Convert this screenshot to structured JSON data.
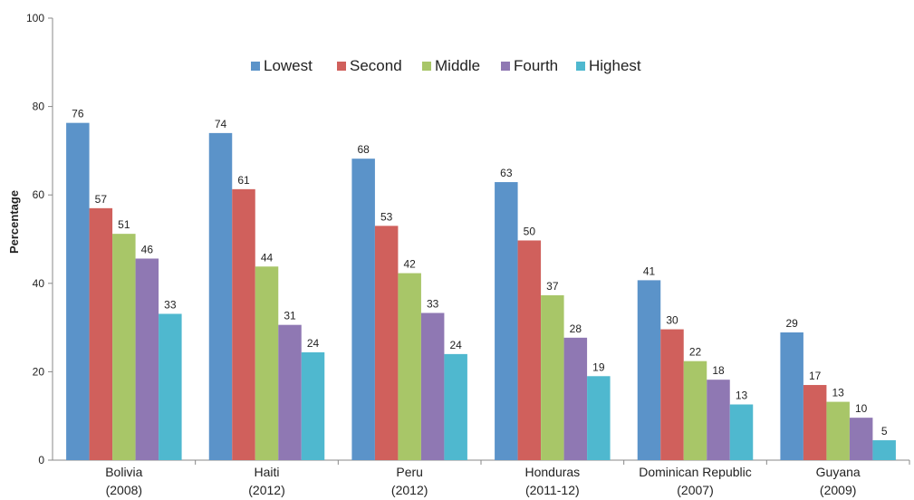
{
  "chart_data": {
    "type": "bar",
    "title": "",
    "xlabel": "",
    "ylabel": "Percentage",
    "ylim": [
      0,
      100
    ],
    "yticks": [
      0,
      20,
      40,
      60,
      80,
      100
    ],
    "grid": false,
    "legend_position": "top",
    "categories": [
      {
        "line1": "Bolivia",
        "line2": "(2008)"
      },
      {
        "line1": "Haiti",
        "line2": "(2012)"
      },
      {
        "line1": "Peru",
        "line2": "(2012)"
      },
      {
        "line1": "Honduras",
        "line2": "(2011-12)"
      },
      {
        "line1": "Dominican Republic",
        "line2": "(2007)"
      },
      {
        "line1": "Guyana",
        "line2": "(2009)"
      }
    ],
    "series": [
      {
        "name": "Lowest",
        "color": "#5b93c9",
        "values": [
          76.3,
          74.0,
          68.2,
          62.9,
          40.7,
          28.9
        ],
        "labels": [
          "76",
          "74",
          "68",
          "63",
          "41",
          "29"
        ]
      },
      {
        "name": "Second",
        "color": "#d0605c",
        "values": [
          57.0,
          61.3,
          53.0,
          49.7,
          29.6,
          17.0
        ],
        "labels": [
          "57",
          "61",
          "53",
          "50",
          "30",
          "17"
        ]
      },
      {
        "name": "Middle",
        "color": "#a8c668",
        "values": [
          51.2,
          43.8,
          42.3,
          37.3,
          22.4,
          13.2
        ],
        "labels": [
          "51",
          "44",
          "42",
          "37",
          "22",
          "13"
        ]
      },
      {
        "name": "Fourth",
        "color": "#8f78b3",
        "values": [
          45.6,
          30.6,
          33.3,
          27.7,
          18.2,
          9.6
        ],
        "labels": [
          "46",
          "31",
          "33",
          "28",
          "18",
          "10"
        ]
      },
      {
        "name": "Highest",
        "color": "#4fb8cf",
        "values": [
          33.1,
          24.4,
          24.0,
          19.0,
          12.6,
          4.5
        ],
        "labels": [
          "33",
          "24",
          "24",
          "19",
          "13",
          "5"
        ]
      }
    ]
  }
}
